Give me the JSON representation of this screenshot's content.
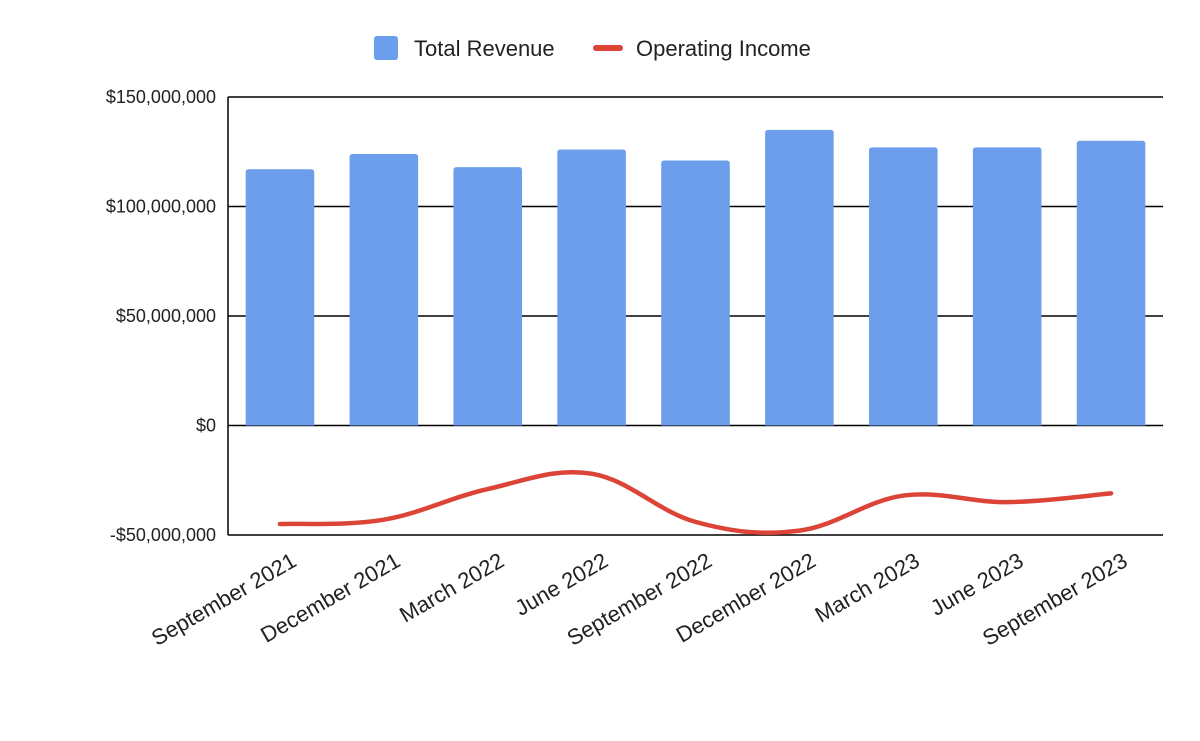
{
  "chart_data": {
    "type": "bar",
    "categories": [
      "September 2021",
      "December 2021",
      "March 2022",
      "June 2022",
      "September 2022",
      "December 2022",
      "March 2023",
      "June 2023",
      "September 2023"
    ],
    "series": [
      {
        "name": "Total Revenue",
        "type": "bar",
        "color": "#6d9eeb",
        "values": [
          117000000,
          124000000,
          118000000,
          126000000,
          121000000,
          135000000,
          127000000,
          127000000,
          130000000
        ]
      },
      {
        "name": "Operating Income",
        "type": "line",
        "color": "#db4437",
        "smooth": true,
        "values": [
          -45000000,
          -43000000,
          -29000000,
          -22000000,
          -44000000,
          -48000000,
          -32000000,
          -35000000,
          -31000000
        ]
      }
    ],
    "ylim": [
      -50000000,
      150000000
    ],
    "yticks": [
      -50000000,
      0,
      50000000,
      100000000,
      150000000
    ],
    "ytick_labels": [
      "-$50,000,000",
      "$0",
      "$50,000,000",
      "$100,000,000",
      "$150,000,000"
    ],
    "title": "",
    "xlabel": "",
    "ylabel": "",
    "legend_position": "top",
    "grid": true
  }
}
